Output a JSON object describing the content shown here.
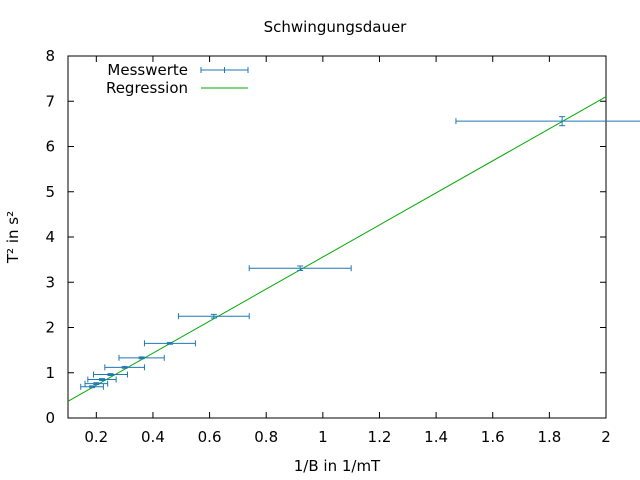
{
  "chart_data": {
    "type": "scatter",
    "title": "Schwingungsdauer",
    "xlabel": "1/B in 1/mT",
    "ylabel": "T² in s²",
    "xlim": [
      0.1,
      2.0
    ],
    "ylim": [
      0,
      8
    ],
    "x_ticks": [
      "0.2",
      "0.4",
      "0.6",
      "0.8",
      "1",
      "1.2",
      "1.4",
      "1.6",
      "1.8",
      "2"
    ],
    "y_ticks": [
      "0",
      "1",
      "2",
      "3",
      "4",
      "5",
      "6",
      "7",
      "8"
    ],
    "x_tick_values": [
      0.2,
      0.4,
      0.6,
      0.8,
      1.0,
      1.2,
      1.4,
      1.6,
      1.8,
      2.0
    ],
    "y_tick_values": [
      0,
      1,
      2,
      3,
      4,
      5,
      6,
      7,
      8
    ],
    "grid": false,
    "legend_position": "top-left",
    "series": [
      {
        "name": "Messwerte",
        "kind": "errorbars",
        "color": "#1f77b4",
        "points": [
          {
            "x": 0.185,
            "y": 0.69,
            "xerr": 0.04,
            "yerr": 0.02
          },
          {
            "x": 0.2,
            "y": 0.76,
            "xerr": 0.04,
            "yerr": 0.02
          },
          {
            "x": 0.22,
            "y": 0.85,
            "xerr": 0.05,
            "yerr": 0.02
          },
          {
            "x": 0.25,
            "y": 0.96,
            "xerr": 0.06,
            "yerr": 0.02
          },
          {
            "x": 0.3,
            "y": 1.12,
            "xerr": 0.07,
            "yerr": 0.02
          },
          {
            "x": 0.36,
            "y": 1.33,
            "xerr": 0.08,
            "yerr": 0.02
          },
          {
            "x": 0.46,
            "y": 1.65,
            "xerr": 0.09,
            "yerr": 0.02
          },
          {
            "x": 0.615,
            "y": 2.25,
            "xerr": 0.125,
            "yerr": 0.04
          },
          {
            "x": 0.92,
            "y": 3.31,
            "xerr": 0.18,
            "yerr": 0.05
          },
          {
            "x": 1.845,
            "y": 6.56,
            "xerr": 0.375,
            "yerr": 0.1
          }
        ]
      },
      {
        "name": "Regression",
        "kind": "line",
        "color": "#00aa00",
        "x": [
          0.1,
          2.0
        ],
        "y": [
          0.37,
          7.1
        ]
      }
    ]
  }
}
